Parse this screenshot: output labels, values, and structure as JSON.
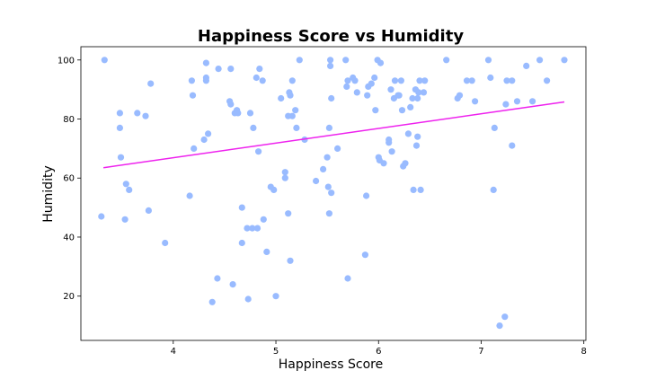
{
  "chart_data": {
    "type": "scatter",
    "title": "Happiness Score vs Humidity",
    "xlabel": "Happiness Score",
    "ylabel": "Humidity",
    "xlim": [
      3.1,
      8.02
    ],
    "ylim": [
      5,
      104.5
    ],
    "xticks": [
      4,
      5,
      6,
      7,
      8
    ],
    "yticks": [
      20,
      40,
      60,
      80,
      100
    ],
    "grid": false,
    "legend": "none",
    "point_color": "#99bbff",
    "line_color": "#ee22ee",
    "series": [
      {
        "points": [
          [
            3.3,
            47
          ],
          [
            3.33,
            100
          ],
          [
            3.48,
            82
          ],
          [
            3.48,
            77
          ],
          [
            3.49,
            67
          ],
          [
            3.53,
            46
          ],
          [
            3.54,
            58
          ],
          [
            3.57,
            56
          ],
          [
            3.65,
            82
          ],
          [
            3.73,
            81
          ],
          [
            3.76,
            49
          ],
          [
            3.78,
            92
          ],
          [
            3.92,
            38
          ],
          [
            4.16,
            54
          ],
          [
            4.18,
            93
          ],
          [
            4.19,
            88
          ],
          [
            4.2,
            70
          ],
          [
            4.3,
            73
          ],
          [
            4.32,
            99
          ],
          [
            4.32,
            94
          ],
          [
            4.32,
            93
          ],
          [
            4.34,
            75
          ],
          [
            4.38,
            18
          ],
          [
            4.43,
            26
          ],
          [
            4.44,
            97
          ],
          [
            4.55,
            86
          ],
          [
            4.56,
            85
          ],
          [
            4.56,
            97
          ],
          [
            4.58,
            24
          ],
          [
            4.6,
            82
          ],
          [
            4.62,
            83
          ],
          [
            4.63,
            82
          ],
          [
            4.67,
            50
          ],
          [
            4.67,
            38
          ],
          [
            4.72,
            43
          ],
          [
            4.73,
            19
          ],
          [
            4.75,
            82
          ],
          [
            4.77,
            43
          ],
          [
            4.78,
            77
          ],
          [
            4.81,
            94
          ],
          [
            4.82,
            43
          ],
          [
            4.83,
            69
          ],
          [
            4.84,
            97
          ],
          [
            4.87,
            93
          ],
          [
            4.88,
            46
          ],
          [
            4.91,
            35
          ],
          [
            4.95,
            57
          ],
          [
            4.98,
            56
          ],
          [
            5.0,
            20
          ],
          [
            5.05,
            87
          ],
          [
            5.09,
            62
          ],
          [
            5.09,
            60
          ],
          [
            5.12,
            81
          ],
          [
            5.12,
            48
          ],
          [
            5.13,
            89
          ],
          [
            5.14,
            88
          ],
          [
            5.14,
            32
          ],
          [
            5.16,
            93
          ],
          [
            5.16,
            81
          ],
          [
            5.19,
            83
          ],
          [
            5.2,
            77
          ],
          [
            5.23,
            100
          ],
          [
            5.28,
            73
          ],
          [
            5.39,
            59
          ],
          [
            5.46,
            63
          ],
          [
            5.5,
            67
          ],
          [
            5.51,
            57
          ],
          [
            5.52,
            48
          ],
          [
            5.52,
            77
          ],
          [
            5.53,
            100
          ],
          [
            5.53,
            98
          ],
          [
            5.54,
            87
          ],
          [
            5.54,
            55
          ],
          [
            5.6,
            70
          ],
          [
            5.68,
            100
          ],
          [
            5.69,
            91
          ],
          [
            5.7,
            93
          ],
          [
            5.7,
            26
          ],
          [
            5.75,
            94
          ],
          [
            5.77,
            93
          ],
          [
            5.79,
            89
          ],
          [
            5.87,
            34
          ],
          [
            5.88,
            54
          ],
          [
            5.89,
            88
          ],
          [
            5.9,
            91
          ],
          [
            5.93,
            92
          ],
          [
            5.96,
            94
          ],
          [
            5.97,
            83
          ],
          [
            5.99,
            100
          ],
          [
            6.0,
            67
          ],
          [
            6.01,
            66
          ],
          [
            6.02,
            99
          ],
          [
            6.05,
            65
          ],
          [
            6.1,
            72
          ],
          [
            6.1,
            73
          ],
          [
            6.12,
            90
          ],
          [
            6.13,
            69
          ],
          [
            6.15,
            87
          ],
          [
            6.16,
            93
          ],
          [
            6.19,
            88
          ],
          [
            6.2,
            88
          ],
          [
            6.22,
            93
          ],
          [
            6.23,
            83
          ],
          [
            6.24,
            64
          ],
          [
            6.26,
            65
          ],
          [
            6.29,
            75
          ],
          [
            6.31,
            84
          ],
          [
            6.33,
            87
          ],
          [
            6.34,
            56
          ],
          [
            6.36,
            90
          ],
          [
            6.37,
            71
          ],
          [
            6.38,
            74
          ],
          [
            6.38,
            87
          ],
          [
            6.39,
            89
          ],
          [
            6.4,
            93
          ],
          [
            6.41,
            56
          ],
          [
            6.44,
            89
          ],
          [
            6.45,
            93
          ],
          [
            6.66,
            100
          ],
          [
            6.77,
            87
          ],
          [
            6.79,
            88
          ],
          [
            6.86,
            93
          ],
          [
            6.91,
            93
          ],
          [
            6.94,
            86
          ],
          [
            7.07,
            100
          ],
          [
            7.09,
            94
          ],
          [
            7.12,
            56
          ],
          [
            7.13,
            77
          ],
          [
            7.18,
            10
          ],
          [
            7.23,
            13
          ],
          [
            7.24,
            85
          ],
          [
            7.25,
            93
          ],
          [
            7.3,
            93
          ],
          [
            7.3,
            71
          ],
          [
            7.35,
            86
          ],
          [
            7.44,
            98
          ],
          [
            7.5,
            86
          ],
          [
            7.57,
            100
          ],
          [
            7.64,
            93
          ],
          [
            7.81,
            100
          ]
        ]
      }
    ],
    "regression_line": {
      "x": [
        3.32,
        7.81
      ],
      "y": [
        63.5,
        85.8
      ]
    }
  }
}
